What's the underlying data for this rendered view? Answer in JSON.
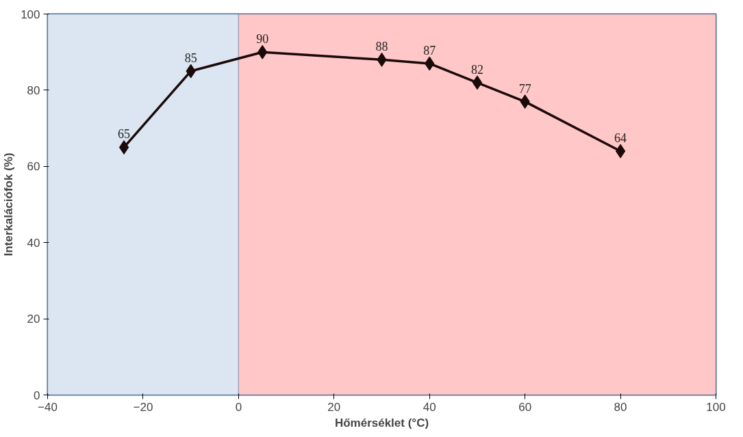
{
  "chart_data": {
    "type": "line",
    "xlabel": "Hőmérséklet (°C)",
    "ylabel": "Interkalációfok (%)",
    "x": [
      -24,
      -10,
      5,
      30,
      40,
      50,
      60,
      80
    ],
    "series": [
      {
        "color": "#1a0a0a",
        "values": [
          65,
          85,
          90,
          88,
          87,
          82,
          77,
          64
        ]
      }
    ],
    "xlim": [
      -40,
      100
    ],
    "xticks": [
      -40,
      -20,
      0,
      20,
      40,
      60,
      80,
      100
    ],
    "ylim": [
      0,
      100
    ],
    "yticks": [
      0,
      20,
      40,
      60,
      80,
      100
    ],
    "bands": [
      {
        "axis": "x",
        "from": -40,
        "to": 0,
        "color": "#dce6f2"
      },
      {
        "axis": "x",
        "from": 0,
        "to": 100,
        "color": "#ffc7c7"
      }
    ],
    "data_labels": true,
    "grid": "y",
    "marker": "diamond",
    "line_style": "solid"
  }
}
